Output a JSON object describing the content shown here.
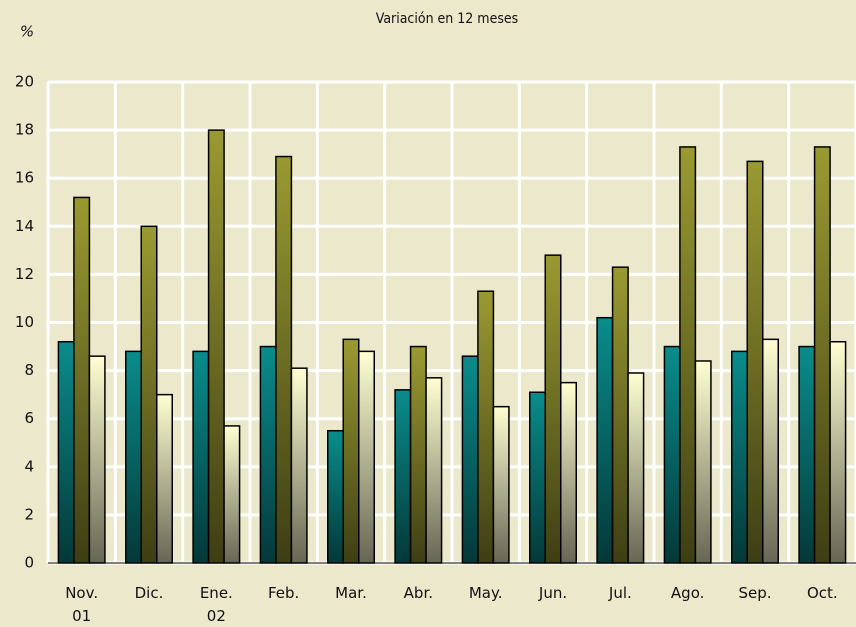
{
  "chart_data": {
    "type": "bar",
    "title": "Variación en 12 meses",
    "y_label": "%",
    "categories": [
      "Nov.\n01",
      "Dic.",
      "Ene.\n02",
      "Feb.",
      "Mar.",
      "Abr.",
      "May.",
      "Jun.",
      "Jul.",
      "Ago.",
      "Sep.",
      "Oct."
    ],
    "series": [
      {
        "color": "#0a8c8c",
        "values": [
          9.2,
          8.8,
          8.8,
          9.0,
          5.5,
          7.2,
          8.6,
          7.1,
          10.2,
          9.0,
          8.8,
          9.0
        ]
      },
      {
        "color": "#9a9a32",
        "values": [
          15.2,
          14.0,
          18.0,
          16.9,
          9.3,
          9.0,
          11.3,
          12.8,
          12.3,
          17.3,
          16.7,
          17.3
        ]
      },
      {
        "color": "#ffffd2",
        "values": [
          8.6,
          7.0,
          5.7,
          8.1,
          8.8,
          7.7,
          6.5,
          7.5,
          7.9,
          8.4,
          9.3,
          9.2
        ]
      }
    ],
    "ylim": [
      0,
      20
    ],
    "yticks": [
      0,
      2,
      4,
      6,
      8,
      10,
      12,
      14,
      16,
      18,
      20
    ],
    "grid": true
  }
}
